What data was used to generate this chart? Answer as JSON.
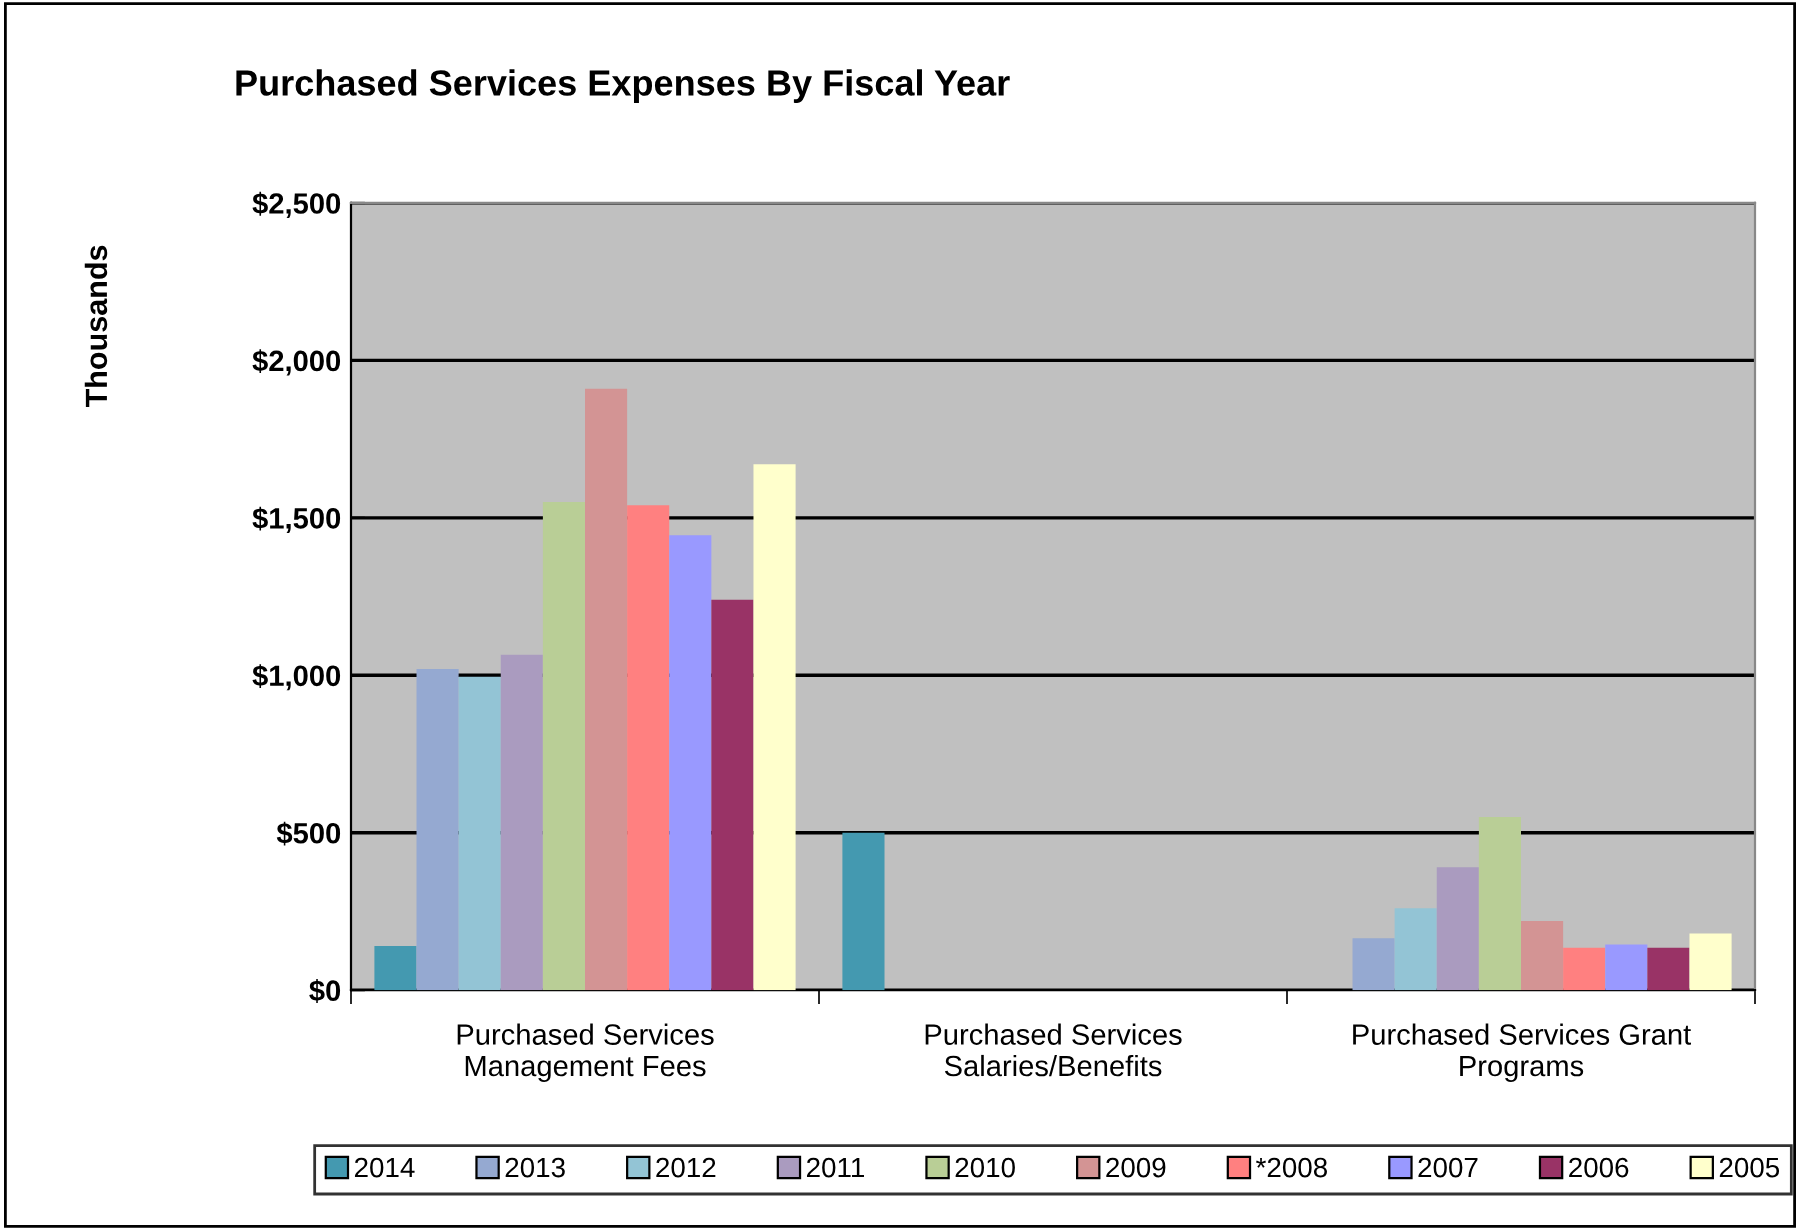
{
  "chart_data": {
    "type": "bar",
    "title": "Purchased Services Expenses By Fiscal Year",
    "ylabel": "Thousands",
    "categories": [
      "Purchased Services\nManagement Fees",
      "Purchased Services\nSalaries/Benefits",
      "Purchased Services Grant\nPrograms"
    ],
    "series": [
      {
        "name": "2014",
        "color": "#4499b0",
        "values": [
          140,
          500,
          null
        ]
      },
      {
        "name": "2013",
        "color": "#95a9d1",
        "values": [
          1020,
          null,
          165
        ]
      },
      {
        "name": "2012",
        "color": "#93c4d5",
        "values": [
          995,
          null,
          260
        ]
      },
      {
        "name": "2011",
        "color": "#aa9bbf",
        "values": [
          1065,
          null,
          390
        ]
      },
      {
        "name": "2010",
        "color": "#b9ce96",
        "values": [
          1550,
          null,
          550
        ]
      },
      {
        "name": "2009",
        "color": "#d39494",
        "values": [
          1910,
          null,
          220
        ]
      },
      {
        "name": "*2008",
        "color": "#ff8080",
        "values": [
          1540,
          null,
          135
        ]
      },
      {
        "name": "2007",
        "color": "#9999ff",
        "values": [
          1445,
          null,
          145
        ]
      },
      {
        "name": "2006",
        "color": "#993366",
        "values": [
          1240,
          null,
          135
        ]
      },
      {
        "name": "2005",
        "color": "#ffffcc",
        "values": [
          1670,
          null,
          180
        ]
      }
    ],
    "ylim": [
      0,
      2500
    ],
    "yticks": [
      {
        "value": 0,
        "label": "$0"
      },
      {
        "value": 500,
        "label": "$500"
      },
      {
        "value": 1000,
        "label": "$1,000"
      },
      {
        "value": 1500,
        "label": "$1,500"
      },
      {
        "value": 2000,
        "label": "$2,000"
      },
      {
        "value": 2500,
        "label": "$2,500"
      }
    ],
    "grid": "y",
    "legend": "bottom"
  }
}
